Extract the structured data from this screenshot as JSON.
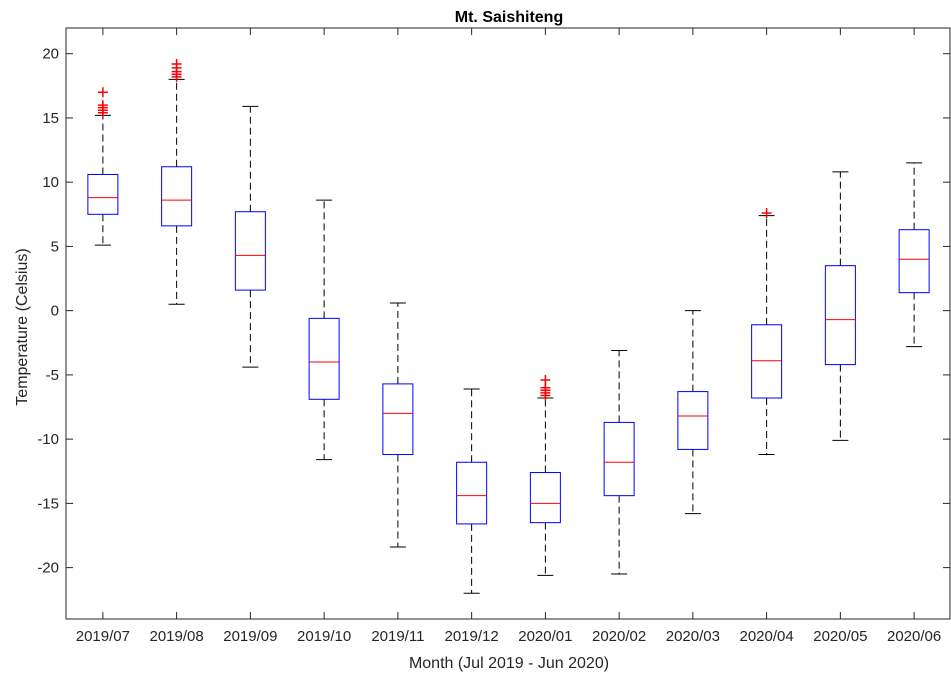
{
  "chart_data": {
    "type": "boxplot",
    "title": "Mt. Saishiteng",
    "xlabel": "Month (Jul 2019 - Jun 2020)",
    "ylabel": "Temperature (Celsius)",
    "ylim": [
      -24,
      22
    ],
    "yticks": [
      20,
      15,
      10,
      5,
      0,
      -5,
      -10,
      -15,
      -20
    ],
    "grid": false,
    "colors": {
      "box": "#0000ff",
      "median": "#ff0000",
      "whisker": "#000000",
      "outlier": "#ff0000"
    },
    "categories": [
      "2019/07",
      "2019/08",
      "2019/09",
      "2019/10",
      "2019/11",
      "2019/12",
      "2020/01",
      "2020/02",
      "2020/03",
      "2020/04",
      "2020/05",
      "2020/06"
    ],
    "boxes": [
      {
        "category": "2019/07",
        "whisker_low": 5.1,
        "q1": 7.5,
        "median": 8.8,
        "q3": 10.6,
        "whisker_high": 15.2,
        "outliers": [
          15.4,
          15.6,
          15.8,
          16.0,
          17.0
        ]
      },
      {
        "category": "2019/08",
        "whisker_low": 0.5,
        "q1": 6.6,
        "median": 8.6,
        "q3": 11.2,
        "whisker_high": 18.0,
        "outliers": [
          18.2,
          18.4,
          18.6,
          18.9,
          19.2
        ]
      },
      {
        "category": "2019/09",
        "whisker_low": -4.4,
        "q1": 1.6,
        "median": 4.3,
        "q3": 7.7,
        "whisker_high": 15.9,
        "outliers": []
      },
      {
        "category": "2019/10",
        "whisker_low": -11.6,
        "q1": -6.9,
        "median": -4.0,
        "q3": -0.6,
        "whisker_high": 8.6,
        "outliers": []
      },
      {
        "category": "2019/11",
        "whisker_low": -18.4,
        "q1": -11.2,
        "median": -8.0,
        "q3": -5.7,
        "whisker_high": 0.6,
        "outliers": []
      },
      {
        "category": "2019/12",
        "whisker_low": -22.0,
        "q1": -16.6,
        "median": -14.4,
        "q3": -11.8,
        "whisker_high": -6.1,
        "outliers": []
      },
      {
        "category": "2020/01",
        "whisker_low": -20.6,
        "q1": -16.5,
        "median": -15.0,
        "q3": -12.6,
        "whisker_high": -6.8,
        "outliers": [
          -6.6,
          -6.4,
          -6.2,
          -6.0,
          -5.4
        ]
      },
      {
        "category": "2020/02",
        "whisker_low": -20.5,
        "q1": -14.4,
        "median": -11.8,
        "q3": -8.7,
        "whisker_high": -3.1,
        "outliers": []
      },
      {
        "category": "2020/03",
        "whisker_low": -15.8,
        "q1": -10.8,
        "median": -8.2,
        "q3": -6.3,
        "whisker_high": 0.0,
        "outliers": []
      },
      {
        "category": "2020/04",
        "whisker_low": -11.2,
        "q1": -6.8,
        "median": -3.9,
        "q3": -1.1,
        "whisker_high": 7.4,
        "outliers": [
          7.6
        ]
      },
      {
        "category": "2020/05",
        "whisker_low": -10.1,
        "q1": -4.2,
        "median": -0.7,
        "q3": 3.5,
        "whisker_high": 10.8,
        "outliers": []
      },
      {
        "category": "2020/06",
        "whisker_low": -2.8,
        "q1": 1.4,
        "median": 4.0,
        "q3": 6.3,
        "whisker_high": 11.5,
        "outliers": []
      }
    ]
  }
}
